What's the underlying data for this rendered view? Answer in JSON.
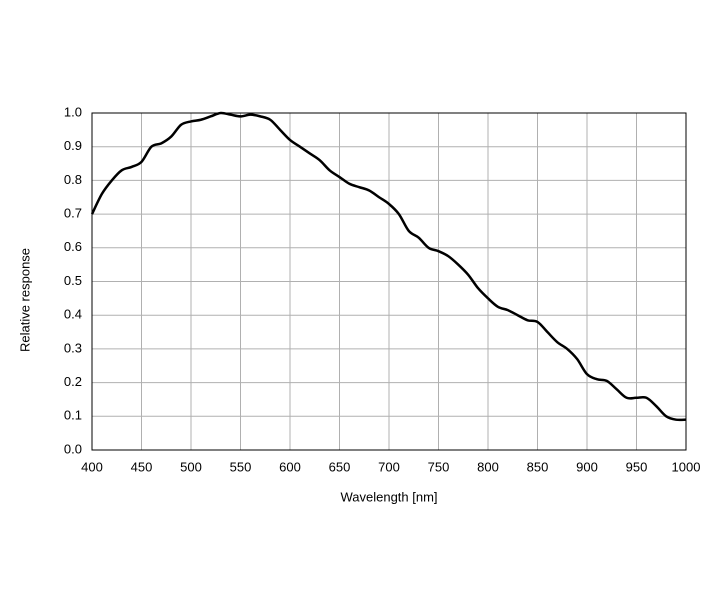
{
  "chart_data": {
    "type": "line",
    "x": [
      400,
      410,
      420,
      430,
      440,
      450,
      460,
      470,
      480,
      490,
      500,
      510,
      520,
      530,
      540,
      550,
      560,
      570,
      580,
      590,
      600,
      610,
      620,
      630,
      640,
      650,
      660,
      670,
      680,
      690,
      700,
      710,
      720,
      730,
      740,
      750,
      760,
      770,
      780,
      790,
      800,
      810,
      820,
      830,
      840,
      850,
      860,
      870,
      880,
      890,
      900,
      910,
      920,
      930,
      940,
      950,
      960,
      970,
      980,
      990,
      1000
    ],
    "values": [
      0.7,
      0.76,
      0.8,
      0.83,
      0.84,
      0.855,
      0.9,
      0.91,
      0.93,
      0.965,
      0.975,
      0.98,
      0.99,
      1.0,
      0.995,
      0.99,
      0.995,
      0.99,
      0.98,
      0.95,
      0.92,
      0.9,
      0.88,
      0.86,
      0.83,
      0.81,
      0.79,
      0.78,
      0.77,
      0.75,
      0.73,
      0.7,
      0.65,
      0.63,
      0.6,
      0.59,
      0.575,
      0.55,
      0.52,
      0.48,
      0.45,
      0.425,
      0.415,
      0.4,
      0.385,
      0.38,
      0.35,
      0.32,
      0.3,
      0.27,
      0.225,
      0.21,
      0.205,
      0.18,
      0.155,
      0.155,
      0.155,
      0.13,
      0.1,
      0.09,
      0.09
    ],
    "color": "#000000",
    "xlabel": "Wavelength [nm]",
    "ylabel": "Relative response",
    "xlim": [
      400,
      1000
    ],
    "xticks": [
      400,
      450,
      500,
      550,
      600,
      650,
      700,
      750,
      800,
      850,
      900,
      950,
      1000
    ],
    "ylim": [
      0,
      1
    ],
    "yticks": [
      {
        "value": 0,
        "label": "0.0"
      },
      0.1,
      0.2,
      0.3,
      0.4,
      0.5,
      0.6,
      0.7,
      0.8,
      0.9,
      {
        "value": 1,
        "label": "1.0"
      }
    ],
    "grid": true
  }
}
